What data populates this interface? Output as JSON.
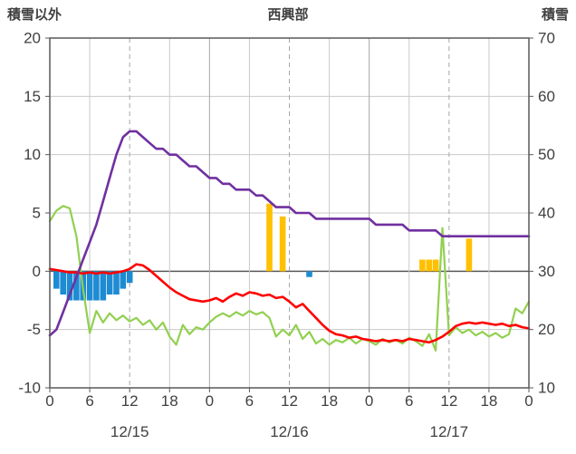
{
  "header": {
    "left_axis_title": "積雪以外",
    "title": "西興部",
    "right_axis_title": "積雪"
  },
  "chart_data": {
    "type": "line",
    "title": "西興部",
    "hours": 72,
    "left_axis": {
      "label": "積雪以外",
      "min": -10,
      "max": 20,
      "ticks": [
        20,
        15,
        10,
        5,
        0,
        -5,
        -10
      ]
    },
    "right_axis": {
      "label": "積雪",
      "min": 10,
      "max": 70,
      "ticks": [
        70,
        60,
        50,
        40,
        30,
        20,
        10
      ]
    },
    "x_ticks": {
      "hours": [
        0,
        6,
        12,
        18,
        24,
        30,
        36,
        42,
        48,
        54,
        60,
        66,
        72
      ],
      "labels": [
        "0",
        "6",
        "12",
        "18",
        "0",
        "6",
        "12",
        "18",
        "0",
        "6",
        "12",
        "18",
        "0"
      ]
    },
    "dates": {
      "labels": [
        "12/15",
        "12/16",
        "12/17"
      ],
      "center_hours": [
        12,
        36,
        60
      ]
    },
    "grid": {
      "minor_color": "#c9c9c9",
      "day_color": "#a6a6a6",
      "noon_dashed": true,
      "zero_line_color": "#595959",
      "border_color": "#595959"
    },
    "series": [
      {
        "name": "blue-bars",
        "type": "bar",
        "axis": "left",
        "color": "#1e8bd2",
        "points": [
          [
            1,
            -1.5
          ],
          [
            2,
            -2
          ],
          [
            3,
            -2.5
          ],
          [
            4,
            -2.5
          ],
          [
            5,
            -2.5
          ],
          [
            6,
            -2.5
          ],
          [
            7,
            -2.5
          ],
          [
            8,
            -2.5
          ],
          [
            9,
            -2
          ],
          [
            10,
            -2
          ],
          [
            11,
            -1.5
          ],
          [
            12,
            -1
          ],
          [
            39,
            -0.5
          ]
        ]
      },
      {
        "name": "orange-bars",
        "type": "bar",
        "axis": "left",
        "color": "#ffc000",
        "points": [
          [
            33,
            5.8
          ],
          [
            35,
            4.7
          ],
          [
            56,
            1
          ],
          [
            57,
            1
          ],
          [
            58,
            1
          ],
          [
            63,
            2.8
          ]
        ]
      },
      {
        "name": "green-line",
        "type": "line",
        "axis": "left",
        "color": "#92d050",
        "width": 2.2,
        "values": [
          4.3,
          5.2,
          5.6,
          5.4,
          3,
          -1.5,
          -5.3,
          -3.4,
          -4.4,
          -3.6,
          -4.2,
          -3.8,
          -4.3,
          -4,
          -4.6,
          -4.2,
          -5,
          -4.4,
          -5.6,
          -6.3,
          -4.6,
          -5.4,
          -4.8,
          -5,
          -4.4,
          -3.9,
          -3.6,
          -3.9,
          -3.5,
          -3.8,
          -3.4,
          -3.7,
          -3.5,
          -4,
          -5.6,
          -5,
          -5.5,
          -4.6,
          -5.8,
          -5.2,
          -6.2,
          -5.8,
          -6.3,
          -5.9,
          -6.1,
          -5.7,
          -6.2,
          -5.8,
          -6,
          -6.3,
          -5.8,
          -6.1,
          -5.9,
          -6.2,
          -5.7,
          -6,
          -6.4,
          -5.4,
          -6.8,
          3.7,
          -5.5,
          -4.8,
          -5.3,
          -5,
          -5.5,
          -5.2,
          -5.6,
          -5.3,
          -5.7,
          -5.4,
          -3.2,
          -3.6,
          -2.6
        ]
      },
      {
        "name": "red-line",
        "type": "line",
        "axis": "left",
        "color": "#ff0000",
        "width": 2.6,
        "values": [
          0.2,
          0.1,
          0,
          -0.1,
          -0.1,
          -0.2,
          -0.1,
          -0.2,
          -0.1,
          -0.2,
          -0.1,
          0,
          0.2,
          0.6,
          0.5,
          0.1,
          -0.4,
          -0.9,
          -1.4,
          -1.8,
          -2.1,
          -2.4,
          -2.5,
          -2.6,
          -2.5,
          -2.3,
          -2.6,
          -2.2,
          -1.9,
          -2.1,
          -1.8,
          -1.9,
          -2.1,
          -2,
          -2.3,
          -2.2,
          -2.6,
          -3.1,
          -2.8,
          -3.4,
          -4,
          -4.6,
          -5.1,
          -5.4,
          -5.5,
          -5.7,
          -5.6,
          -5.8,
          -5.9,
          -6,
          -5.9,
          -6,
          -5.9,
          -6,
          -5.8,
          -5.9,
          -6,
          -6.1,
          -5.9,
          -5.6,
          -5.2,
          -4.7,
          -4.5,
          -4.4,
          -4.5,
          -4.4,
          -4.5,
          -4.6,
          -4.5,
          -4.7,
          -4.6,
          -4.8,
          -4.9
        ]
      },
      {
        "name": "snow-depth-line",
        "type": "line",
        "axis": "right",
        "color": "#7030a0",
        "width": 2.6,
        "values": [
          19,
          20,
          23,
          26,
          29,
          32,
          35,
          38,
          42,
          46,
          50,
          53,
          54,
          54,
          53,
          52,
          51,
          51,
          50,
          50,
          49,
          48,
          48,
          47,
          46,
          46,
          45,
          45,
          44,
          44,
          44,
          43,
          43,
          42,
          41,
          41,
          41,
          40,
          40,
          40,
          39,
          39,
          39,
          39,
          39,
          39,
          39,
          39,
          39,
          38,
          38,
          38,
          38,
          38,
          37,
          37,
          37,
          37,
          37,
          36,
          36,
          36,
          36,
          36,
          36,
          36,
          36,
          36,
          36,
          36,
          36,
          36,
          36
        ]
      }
    ]
  }
}
